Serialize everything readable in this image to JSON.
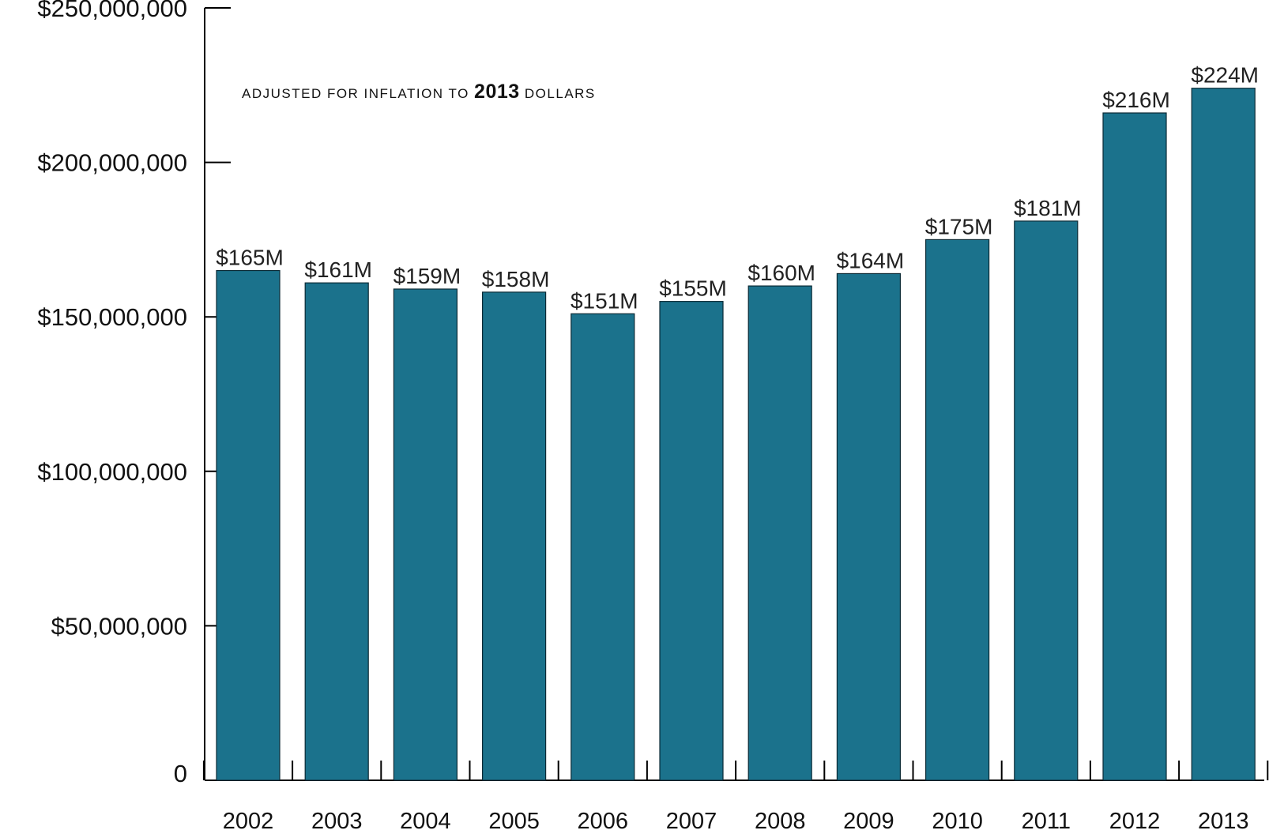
{
  "chart_data": {
    "type": "bar",
    "categories": [
      "2002",
      "2003",
      "2004",
      "2005",
      "2006",
      "2007",
      "2008",
      "2009",
      "2010",
      "2011",
      "2012",
      "2013"
    ],
    "values": [
      165000000,
      161000000,
      159000000,
      158000000,
      151000000,
      155000000,
      160000000,
      164000000,
      175000000,
      181000000,
      216000000,
      224000000
    ],
    "data_labels": [
      "$165M",
      "$161M",
      "$159M",
      "$158M",
      "$151M",
      "$155M",
      "$160M",
      "$164M",
      "$175M",
      "$181M",
      "$216M",
      "$224M"
    ],
    "y_ticks": [
      0,
      50000000,
      100000000,
      150000000,
      200000000,
      250000000
    ],
    "y_tick_labels": [
      "0",
      "$50,000,000",
      "$100,000,000",
      "$150,000,000",
      "$200,000,000",
      "$250,000,000"
    ],
    "ylim": [
      0,
      250000000
    ],
    "title": "",
    "xlabel": "",
    "ylabel": "",
    "annotation": {
      "prefix": "adjusted for inflation to",
      "emphasis": "2013",
      "suffix": "dollars"
    },
    "grid": false,
    "legend": "none",
    "bar_color": "#1B728C"
  }
}
